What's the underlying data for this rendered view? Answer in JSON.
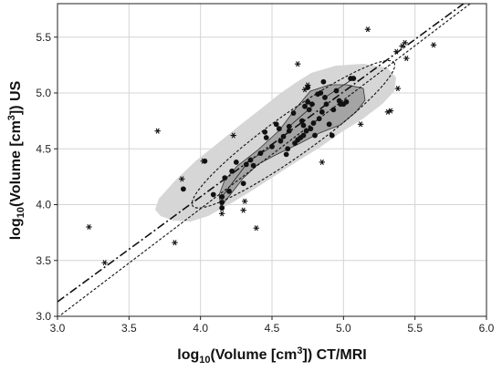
{
  "chart_data": {
    "type": "scatter",
    "title": "",
    "xlabel": {
      "prefix": "log",
      "sub": "10",
      "mid": "(Volume [cm",
      "sup": "3",
      "suffix": "]) CT/MRI"
    },
    "ylabel": {
      "prefix": "log",
      "sub": "10",
      "mid": "(Volume [cm",
      "sup": "3",
      "suffix": "]) US"
    },
    "xlim": [
      3.0,
      6.0
    ],
    "ylim": [
      3.0,
      5.8
    ],
    "x_ticks": [
      "3.0",
      "3.5",
      "4.0",
      "4.5",
      "5.0",
      "5.5",
      "6.0"
    ],
    "y_ticks": [
      "3.0",
      "3.5",
      "4.0",
      "4.5",
      "5.0",
      "5.5"
    ],
    "grid": true,
    "colors": {
      "outer_region": "#d6d6d6",
      "inner_region": "#a4a4a4",
      "points": "#111111",
      "lines": "#111111",
      "grid": "#d4d4d4"
    },
    "core_points": {
      "marker": "circle",
      "x": [
        3.88,
        4.03,
        4.09,
        4.15,
        4.15,
        4.15,
        4.17,
        4.2,
        4.22,
        4.25,
        4.3,
        4.32,
        4.35,
        4.37,
        4.42,
        4.45,
        4.46,
        4.5,
        4.53,
        4.55,
        4.56,
        4.58,
        4.6,
        4.61,
        4.62,
        4.62,
        4.65,
        4.66,
        4.68,
        4.7,
        4.71,
        4.72,
        4.72,
        4.73,
        4.74,
        4.75,
        4.75,
        4.76,
        4.77,
        4.78,
        4.79,
        4.8,
        4.82,
        4.83,
        4.84,
        4.85,
        4.86,
        4.87,
        4.88,
        4.9,
        4.92,
        4.93,
        4.95,
        4.97,
        4.98,
        5.0,
        5.02,
        5.05,
        5.07
      ],
      "y": [
        4.14,
        4.39,
        4.09,
        4.02,
        3.97,
        4.07,
        4.24,
        4.12,
        4.3,
        4.38,
        4.19,
        4.36,
        4.4,
        4.35,
        4.46,
        4.65,
        4.6,
        4.52,
        4.72,
        4.68,
        4.57,
        4.61,
        4.45,
        4.5,
        4.66,
        4.7,
        4.82,
        4.55,
        4.58,
        4.6,
        4.75,
        4.62,
        4.71,
        4.88,
        4.66,
        4.92,
        5.05,
        4.85,
        4.68,
        4.9,
        4.73,
        4.62,
        4.99,
        4.77,
        5.0,
        4.83,
        5.1,
        4.96,
        4.9,
        4.72,
        4.62,
        4.85,
        5.02,
        4.93,
        4.9,
        4.9,
        4.92,
        5.13,
        5.13
      ]
    },
    "outlier_points": {
      "marker": "asterisk",
      "x": [
        3.22,
        3.33,
        3.7,
        3.82,
        3.87,
        4.02,
        4.15,
        4.23,
        4.3,
        4.31,
        4.39,
        4.68,
        4.73,
        4.75,
        4.85,
        5.12,
        5.17,
        5.31,
        5.33,
        5.37,
        5.38,
        5.41,
        5.43,
        5.44,
        5.63
      ],
      "y": [
        3.8,
        3.48,
        4.66,
        3.66,
        4.23,
        4.39,
        3.92,
        4.62,
        3.95,
        4.03,
        3.79,
        5.26,
        5.03,
        5.07,
        4.38,
        4.72,
        5.57,
        4.83,
        4.84,
        5.37,
        5.04,
        5.42,
        5.45,
        5.31,
        5.43
      ]
    },
    "fit_lines": [
      {
        "style": "dash-dot",
        "x": [
          3.0,
          6.0
        ],
        "y": [
          3.13,
          5.95
        ]
      },
      {
        "style": "dotted",
        "x": [
          3.0,
          6.0
        ],
        "y": [
          2.99,
          5.91
        ]
      }
    ],
    "confidence_ellipse": {
      "cx": 4.65,
      "cy": 4.63,
      "rx": 0.97,
      "ry": 0.165,
      "angle_deg": 35.5
    }
  }
}
